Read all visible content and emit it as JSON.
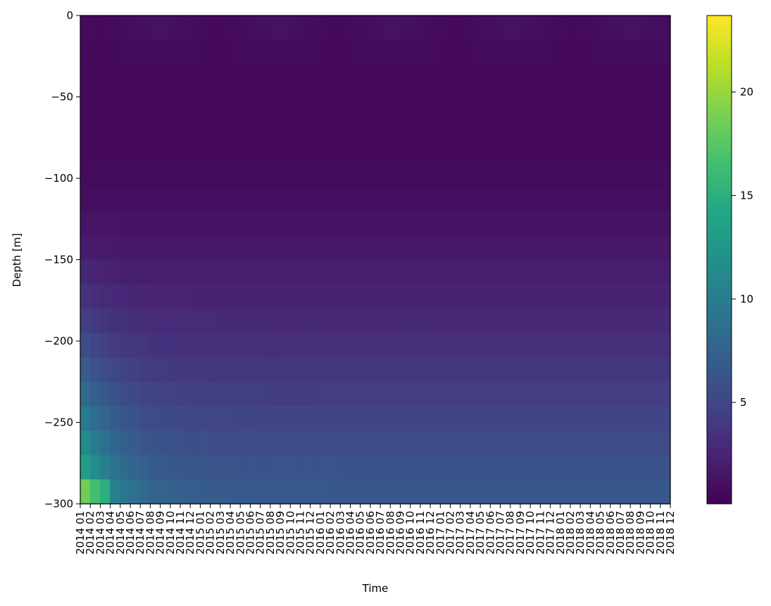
{
  "chart_data": {
    "type": "heatmap",
    "title": "",
    "xlabel": "Time",
    "ylabel": "Depth [m]",
    "ylim": [
      -300,
      0
    ],
    "yticks": [
      0,
      -50,
      -100,
      -150,
      -200,
      -250,
      -300
    ],
    "yticks_labels": [
      "0",
      "−50",
      "−100",
      "−150",
      "−200",
      "−250",
      "−300"
    ],
    "x_categories": [
      "2014 01",
      "2014 02",
      "2014 03",
      "2014 04",
      "2014 05",
      "2014 06",
      "2014 07",
      "2014 08",
      "2014 09",
      "2014 10",
      "2014 11",
      "2014 12",
      "2015 01",
      "2015 02",
      "2015 03",
      "2015 04",
      "2015 05",
      "2015 06",
      "2015 07",
      "2015 08",
      "2015 09",
      "2015 10",
      "2015 11",
      "2015 12",
      "2016 01",
      "2016 02",
      "2016 03",
      "2016 04",
      "2016 05",
      "2016 06",
      "2016 07",
      "2016 08",
      "2016 09",
      "2016 10",
      "2016 11",
      "2016 12",
      "2017 01",
      "2017 02",
      "2017 03",
      "2017 04",
      "2017 05",
      "2017 06",
      "2017 07",
      "2017 08",
      "2017 09",
      "2017 10",
      "2017 11",
      "2017 12",
      "2018 01",
      "2018 02",
      "2018 03",
      "2018 04",
      "2018 05",
      "2018 06",
      "2018 07",
      "2018 08",
      "2018 09",
      "2018 10",
      "2018 11",
      "2018 12"
    ],
    "depth_levels": [
      0,
      -15,
      -30,
      -45,
      -60,
      -75,
      -90,
      -105,
      -120,
      -135,
      -150,
      -165,
      -180,
      -195,
      -210,
      -225,
      -240,
      -255,
      -270,
      -285,
      -300
    ],
    "colorbar": {
      "colormap": "viridis",
      "vmin": 0.1,
      "vmax": 23.7,
      "ticks": [
        5,
        10,
        15,
        20
      ],
      "ticks_labels": [
        "5",
        "10",
        "15",
        "20"
      ]
    },
    "grid": false,
    "legend": "none"
  }
}
